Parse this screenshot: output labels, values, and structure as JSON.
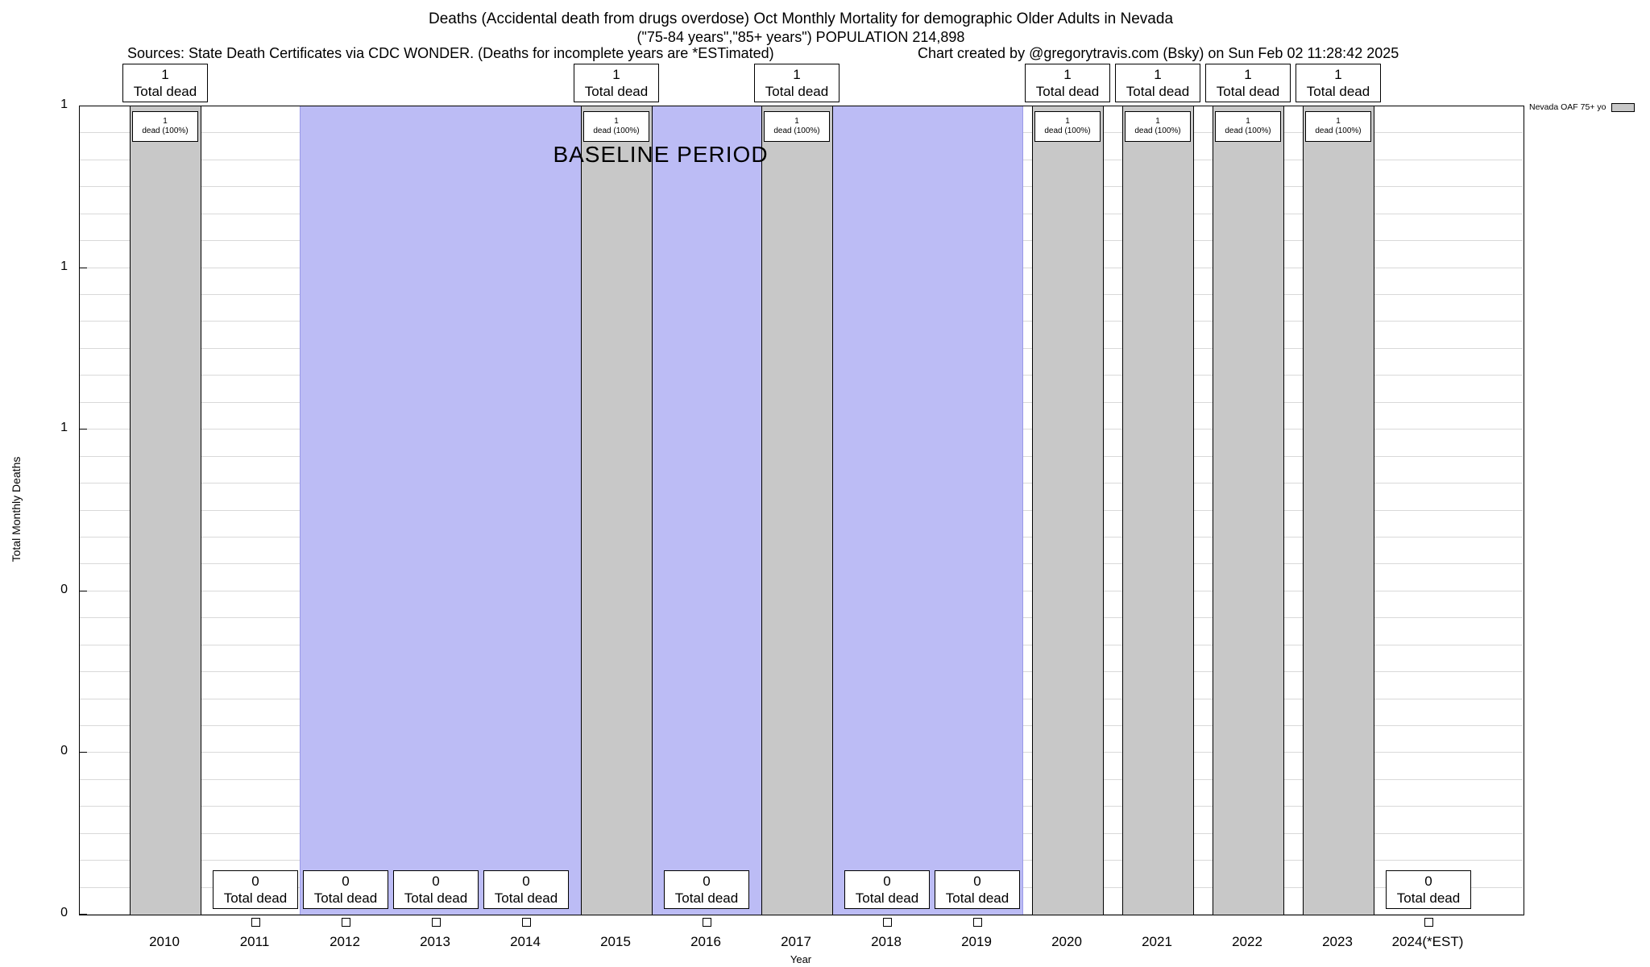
{
  "notes": {
    "sources": "Sources: State Death Certificates via CDC WONDER. (Deaths for incomplete years are *ESTimated)",
    "credit": "Chart created by @gregorytravis.com (Bsky) on Sun Feb 02 11:28:42 2025"
  },
  "colors": {
    "bar": "#c8c8c8",
    "baseline_region": "#bcbcf5",
    "grid": "#d9d9d9",
    "border": "#000000",
    "box_bg": "#ffffff"
  },
  "chart_data": {
    "type": "bar",
    "title": "Deaths (Accidental death from drugs overdose) Oct Monthly Mortality for demographic Older Adults in Nevada",
    "subtitle": "(\"75-84 years\",\"85+ years\") POPULATION 214,898",
    "xlabel": "Year",
    "ylabel": "Total Monthly Deaths",
    "ylim": [
      0,
      1
    ],
    "grid": "on",
    "legend_position": "top-right",
    "series_name": "Nevada OAF 75+ yo",
    "ytick_labels": [
      "1",
      "1",
      "1",
      "0",
      "0",
      "0"
    ],
    "ytick_values": [
      1.0,
      0.8,
      0.6,
      0.4,
      0.2,
      0.0
    ],
    "categories": [
      "2010",
      "2011",
      "2012",
      "2013",
      "2014",
      "2015",
      "2016",
      "2017",
      "2018",
      "2019",
      "2020",
      "2021",
      "2022",
      "2023",
      "2024(*EST)"
    ],
    "values": [
      1,
      0,
      0,
      0,
      0,
      1,
      0,
      1,
      0,
      0,
      1,
      1,
      1,
      1,
      0
    ],
    "baseline_region": {
      "label": "BASELINE PERIOD",
      "from_year": "2012",
      "to_year": "2019"
    },
    "bars": [
      {
        "year": "2010",
        "value": 1,
        "top_label": [
          "1",
          "Total dead"
        ],
        "inbar_label": [
          "1",
          "dead (100%)"
        ]
      },
      {
        "year": "2011",
        "value": 0,
        "bottom_label": [
          "0",
          "Total dead"
        ]
      },
      {
        "year": "2012",
        "value": 0,
        "bottom_label": [
          "0",
          "Total dead"
        ]
      },
      {
        "year": "2013",
        "value": 0,
        "bottom_label": [
          "0",
          "Total dead"
        ]
      },
      {
        "year": "2014",
        "value": 0,
        "bottom_label": [
          "0",
          "Total dead"
        ]
      },
      {
        "year": "2015",
        "value": 1,
        "top_label": [
          "1",
          "Total dead"
        ],
        "inbar_label": [
          "1",
          "dead (100%)"
        ]
      },
      {
        "year": "2016",
        "value": 0,
        "bottom_label": [
          "0",
          "Total dead"
        ]
      },
      {
        "year": "2017",
        "value": 1,
        "top_label": [
          "1",
          "Total dead"
        ],
        "inbar_label": [
          "1",
          "dead (100%)"
        ]
      },
      {
        "year": "2018",
        "value": 0,
        "bottom_label": [
          "0",
          "Total dead"
        ]
      },
      {
        "year": "2019",
        "value": 0,
        "bottom_label": [
          "0",
          "Total dead"
        ]
      },
      {
        "year": "2020",
        "value": 1,
        "top_label": [
          "1",
          "Total dead"
        ],
        "inbar_label": [
          "1",
          "dead (100%)"
        ]
      },
      {
        "year": "2021",
        "value": 1,
        "top_label": [
          "1",
          "Total dead"
        ],
        "inbar_label": [
          "1",
          "dead (100%)"
        ]
      },
      {
        "year": "2022",
        "value": 1,
        "top_label": [
          "1",
          "Total dead"
        ],
        "inbar_label": [
          "1",
          "dead (100%)"
        ]
      },
      {
        "year": "2023",
        "value": 1,
        "top_label": [
          "1",
          "Total dead"
        ],
        "inbar_label": [
          "1",
          "dead (100%)"
        ]
      },
      {
        "year": "2024(*EST)",
        "value": 0,
        "bottom_label": [
          "0",
          "Total dead"
        ]
      }
    ]
  }
}
